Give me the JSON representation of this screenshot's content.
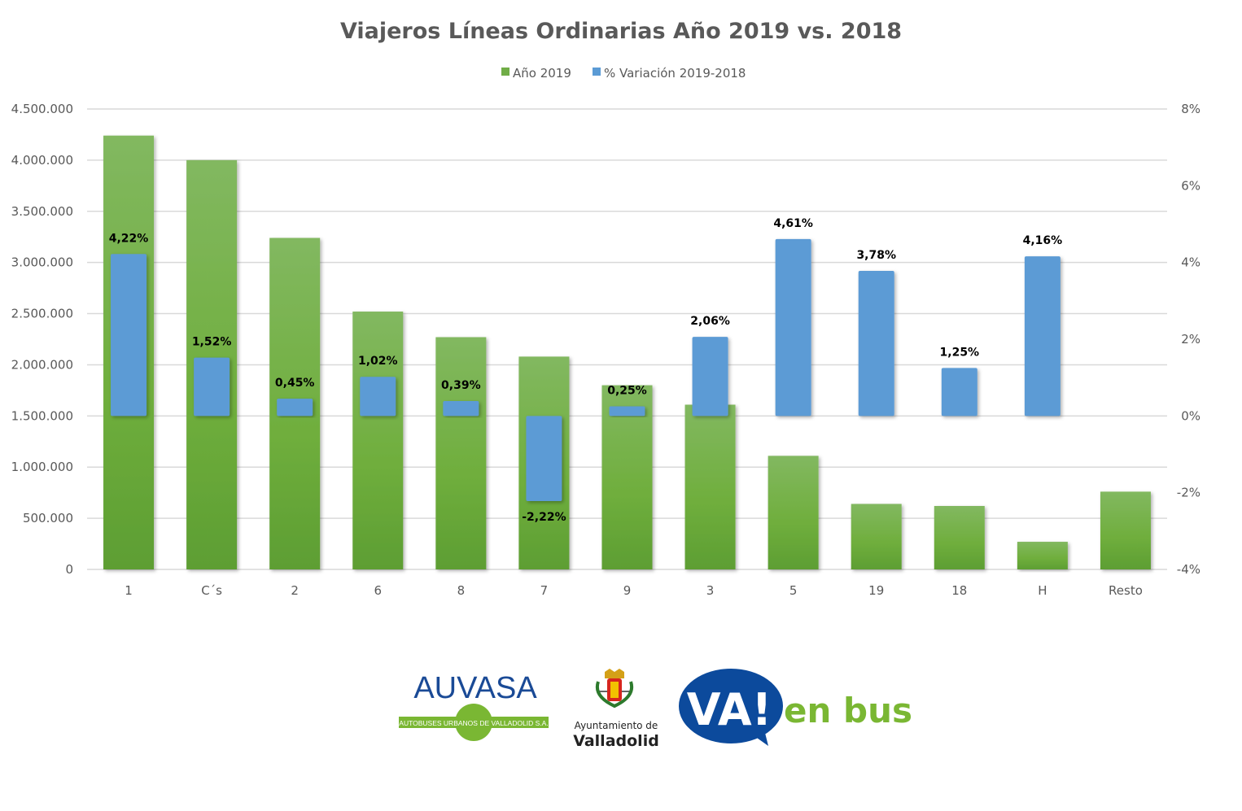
{
  "chart_data": {
    "type": "bar",
    "title": "Viajeros Líneas Ordinarias Año 2019 vs. 2018",
    "categories": [
      "1",
      "C´s",
      "2",
      "6",
      "8",
      "7",
      "9",
      "3",
      "5",
      "19",
      "18",
      "H",
      "Resto"
    ],
    "series": [
      {
        "name": "Año 2019",
        "axis": "left",
        "color": "#70ad47",
        "values": [
          4240000,
          4000000,
          3240000,
          2520000,
          2270000,
          2080000,
          1800000,
          1610000,
          1110000,
          640000,
          620000,
          270000,
          760000
        ]
      },
      {
        "name": "% Variación 2019-2018",
        "axis": "right",
        "color": "#5b9bd5",
        "values": [
          4.22,
          1.52,
          0.45,
          1.02,
          0.39,
          -2.22,
          0.25,
          2.06,
          4.61,
          3.78,
          1.25,
          4.16,
          null
        ],
        "labels": [
          "4,22%",
          "1,52%",
          "0,45%",
          "1,02%",
          "0,39%",
          "-2,22%",
          "0,25%",
          "2,06%",
          "4,61%",
          "3,78%",
          "1,25%",
          "4,16%",
          ""
        ]
      }
    ],
    "left_axis": {
      "range": [
        0,
        4500000
      ],
      "ticks": [
        "0",
        "500.000",
        "1.000.000",
        "1.500.000",
        "2.000.000",
        "2.500.000",
        "3.000.000",
        "3.500.000",
        "4.000.000",
        "4.500.000"
      ]
    },
    "right_axis": {
      "range": [
        -4,
        8
      ],
      "ticks": [
        "-4%",
        "-2%",
        "0%",
        "2%",
        "4%",
        "6%",
        "8%"
      ]
    },
    "grid": true,
    "legend": "top"
  },
  "logos": {
    "auvasa": "AUVASA",
    "auvasa_sub": "AUTOBUSES URBANOS DE VALLADOLID S.A.",
    "ayto_line1": "Ayuntamiento de",
    "ayto_line2": "Valladolid",
    "va": "VA!",
    "enbus": "en bus"
  }
}
